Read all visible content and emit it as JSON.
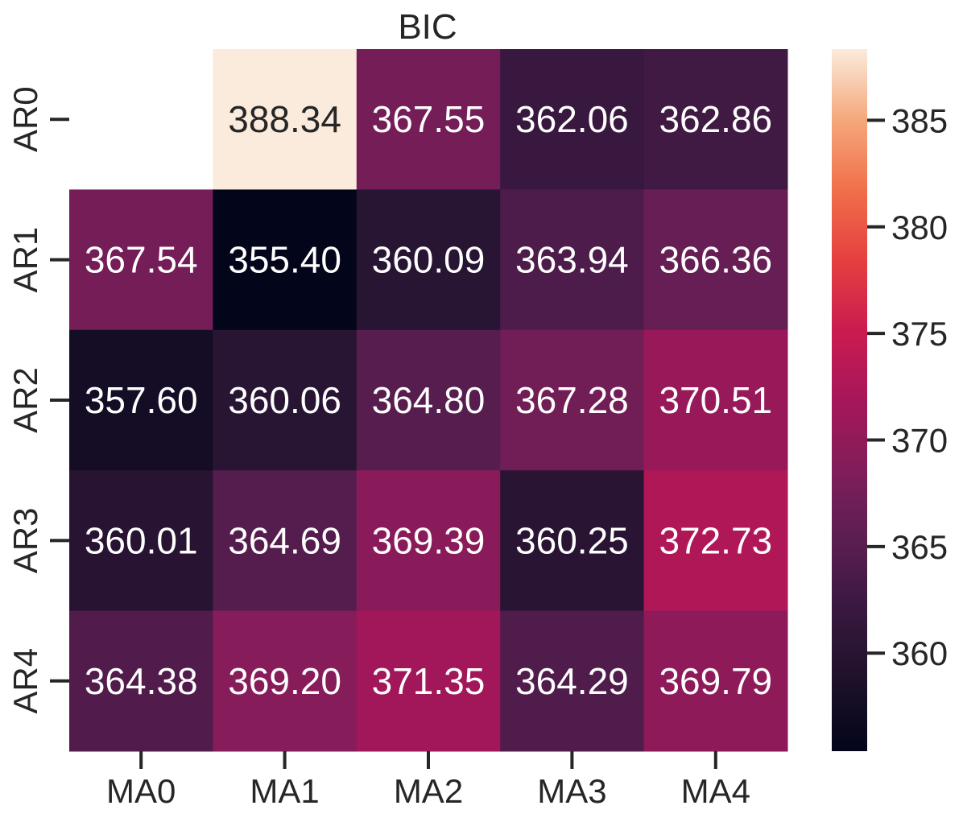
{
  "chart_data": {
    "type": "heatmap",
    "title": "BIC",
    "xlabel": "",
    "ylabel": "",
    "x_categories": [
      "MA0",
      "MA1",
      "MA2",
      "MA3",
      "MA4"
    ],
    "y_categories": [
      "AR0",
      "AR1",
      "AR2",
      "AR3",
      "AR4"
    ],
    "values": [
      [
        null,
        388.34,
        367.55,
        362.06,
        362.86
      ],
      [
        367.54,
        355.4,
        360.09,
        363.94,
        366.36
      ],
      [
        357.6,
        360.06,
        364.8,
        367.28,
        370.51
      ],
      [
        360.01,
        364.69,
        369.39,
        360.25,
        372.73
      ],
      [
        364.38,
        369.2,
        371.35,
        364.29,
        369.79
      ]
    ],
    "value_format": "0.00",
    "colorbar": {
      "min": 355.4,
      "max": 388.34,
      "ticks": [
        360,
        365,
        370,
        375,
        380,
        385
      ],
      "colormap": "rocket"
    },
    "grid": false
  }
}
